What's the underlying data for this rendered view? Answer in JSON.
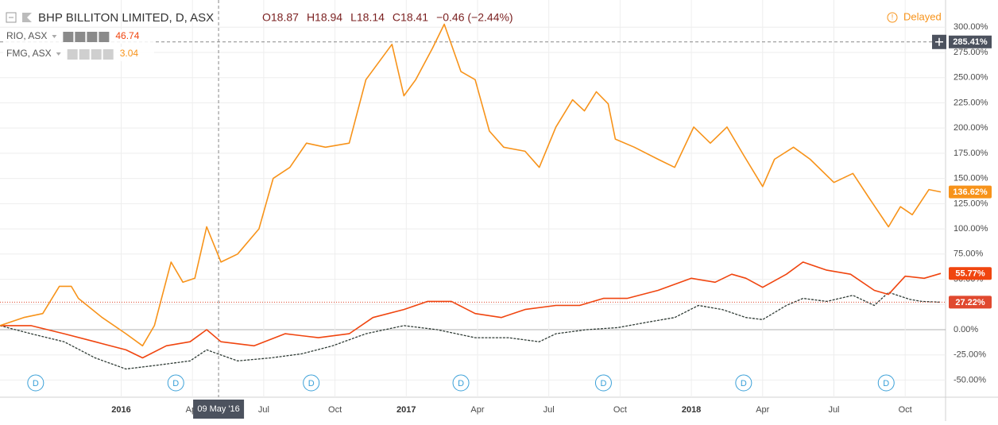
{
  "header": {
    "ohlc": [
      "O18.87",
      "H18.94",
      "L18.14",
      "C18.41",
      "−0.46 (−2.44%)"
    ],
    "status": "Delayed"
  },
  "chart_data": {
    "type": "line",
    "xlim": [
      -5.1,
      34.7
    ],
    "ylim": [
      -67,
      327
    ],
    "xticks": [
      {
        "value": 0,
        "label": "2016"
      },
      {
        "value": 3,
        "label": "Apr"
      },
      {
        "value": 6,
        "label": "Jul"
      },
      {
        "value": 9,
        "label": "Oct"
      },
      {
        "value": 12,
        "label": "2017"
      },
      {
        "value": 15,
        "label": "Apr"
      },
      {
        "value": 18,
        "label": "Jul"
      },
      {
        "value": 21,
        "label": "Oct"
      },
      {
        "value": 24,
        "label": "2018"
      },
      {
        "value": 27,
        "label": "Apr"
      },
      {
        "value": 30,
        "label": "Jul"
      },
      {
        "value": 33,
        "label": "Oct"
      }
    ],
    "yticks": [
      {
        "value": -50,
        "label": "-50.00%"
      },
      {
        "value": -25,
        "label": "-25.00%"
      },
      {
        "value": 0,
        "label": "0.00%"
      },
      {
        "value": 25,
        "label": "25.00%"
      },
      {
        "value": 50,
        "label": "50.00%"
      },
      {
        "value": 75,
        "label": "75.00%"
      },
      {
        "value": 100,
        "label": "100.00%"
      },
      {
        "value": 125,
        "label": "125.00%"
      },
      {
        "value": 150,
        "label": "150.00%"
      },
      {
        "value": 175,
        "label": "175.00%"
      },
      {
        "value": 200,
        "label": "200.00%"
      },
      {
        "value": 225,
        "label": "225.00%"
      },
      {
        "value": 250,
        "label": "250.00%"
      },
      {
        "value": 275,
        "label": "275.00%"
      },
      {
        "value": 300,
        "label": "300.00%"
      }
    ],
    "grid": true,
    "crosshair": {
      "x": 4.1,
      "x_label": "09 May '16",
      "y": 285.41,
      "y_label": "285.41%"
    },
    "events": [
      {
        "x": -3.6,
        "label": "D"
      },
      {
        "x": 2.3,
        "label": "D"
      },
      {
        "x": 8.0,
        "label": "D"
      },
      {
        "x": 14.3,
        "label": "D"
      },
      {
        "x": 20.3,
        "label": "D"
      },
      {
        "x": 26.2,
        "label": "D"
      },
      {
        "x": 32.2,
        "label": "D"
      }
    ],
    "series": [
      {
        "name": "RIO, ASX",
        "price": "46.74",
        "color": "#f0450f",
        "end_label": "55.77%",
        "x": [
          -5.1,
          -3.8,
          -2.4,
          -1.1,
          0.2,
          0.9,
          1.9,
          2.9,
          3.6,
          4.2,
          5.6,
          6.9,
          8.3,
          9.6,
          10.6,
          11.9,
          12.9,
          13.9,
          14.9,
          16.0,
          17.0,
          18.3,
          19.3,
          20.3,
          21.3,
          22.6,
          24.0,
          25.0,
          25.7,
          26.3,
          27.0,
          28.0,
          28.7,
          29.7,
          30.7,
          31.7,
          32.3,
          33.0,
          33.8,
          34.5
        ],
        "values": [
          4,
          4,
          -4,
          -12,
          -20,
          -28,
          -16,
          -12,
          0,
          -12,
          -16,
          -4,
          -8,
          -4,
          12,
          20,
          28,
          28,
          16,
          12,
          20,
          24,
          24,
          31,
          31,
          39,
          51,
          47,
          55,
          51,
          42,
          55,
          67,
          59,
          55,
          39,
          35,
          53,
          51,
          55.77
        ]
      },
      {
        "name": "FMG, ASX",
        "price": "3.04",
        "color": "#f7931a",
        "end_label": "136.62%",
        "x": [
          -5.1,
          -4.1,
          -3.3,
          -2.6,
          -2.1,
          -1.8,
          -0.8,
          0.2,
          0.9,
          1.4,
          2.1,
          2.6,
          3.1,
          3.6,
          4.2,
          4.9,
          5.8,
          6.4,
          7.1,
          7.8,
          8.6,
          9.6,
          10.3,
          11.4,
          11.9,
          12.4,
          13.1,
          13.6,
          14.3,
          14.9,
          15.5,
          16.1,
          17.0,
          17.6,
          18.3,
          19.0,
          19.5,
          20.0,
          20.5,
          20.8,
          21.6,
          22.6,
          23.3,
          24.1,
          24.8,
          25.5,
          26.2,
          27.0,
          27.5,
          28.3,
          29.0,
          30.0,
          30.8,
          31.5,
          32.3,
          32.8,
          33.3,
          34.0,
          34.5
        ],
        "values": [
          4,
          12,
          16,
          43,
          43,
          31,
          12,
          -4,
          -16,
          4,
          67,
          47,
          51,
          102,
          67,
          75,
          100,
          150,
          161,
          185,
          181,
          185,
          248,
          283,
          232,
          248,
          279,
          303,
          256,
          248,
          197,
          181,
          177,
          161,
          201,
          228,
          217,
          236,
          224,
          189,
          181,
          169,
          161,
          201,
          185,
          201,
          173,
          142,
          169,
          181,
          169,
          146,
          155,
          130,
          102,
          122,
          114,
          139,
          136.62
        ]
      },
      {
        "name": "BHP BILLITON LIMITED, D, ASX",
        "color": "#2f3b35",
        "end_label": "27.22%",
        "x": [
          -5.1,
          -3.8,
          -2.4,
          -1.1,
          0.2,
          1.6,
          2.9,
          3.6,
          4.9,
          6.3,
          7.6,
          8.9,
          10.3,
          11.9,
          13.3,
          14.9,
          16.3,
          17.6,
          18.3,
          19.6,
          20.9,
          22.3,
          23.3,
          24.3,
          25.3,
          26.3,
          27.0,
          28.0,
          28.7,
          29.7,
          30.8,
          31.7,
          32.3,
          33.2,
          33.7,
          34.5
        ],
        "values": [
          4,
          -4,
          -12,
          -28,
          -39,
          -35,
          -31,
          -20,
          -31,
          -28,
          -24,
          -16,
          -4,
          4,
          0,
          -8,
          -8,
          -12,
          -4,
          0,
          2,
          8,
          12,
          24,
          20,
          12,
          10,
          24,
          31,
          28,
          34,
          24,
          37,
          30,
          28,
          27.22
        ]
      }
    ]
  }
}
